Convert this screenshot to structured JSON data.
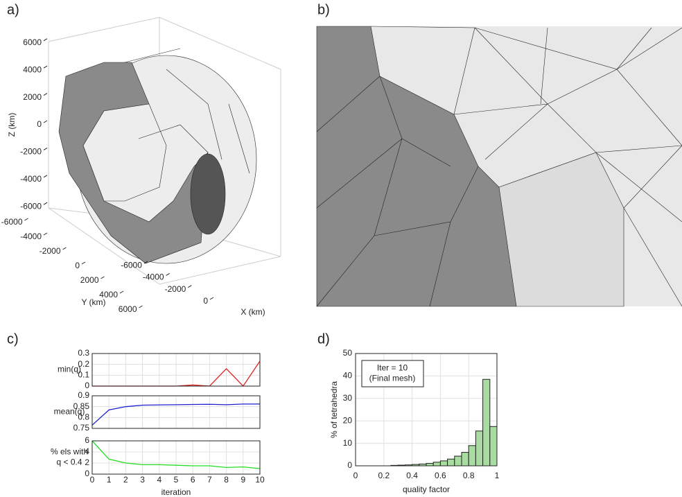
{
  "chart_data": [
    {
      "type": "mesh3d",
      "panel": "a)",
      "xlabel": "X (km)",
      "ylabel": "Y (km)",
      "zlabel": "Z (km)",
      "xticks": [
        -6000,
        -4000,
        -2000,
        0
      ],
      "yticks": [
        -6000,
        -4000,
        -2000,
        0,
        2000,
        4000,
        6000
      ],
      "zticks": [
        -6000,
        -4000,
        -2000,
        0,
        2000,
        4000,
        6000
      ]
    },
    {
      "type": "mesh2d",
      "panel": "b)"
    },
    {
      "type": "line",
      "panel": "c)",
      "ylabel": [
        "min(q)"
      ],
      "color": "#e02020",
      "x": [
        0,
        1,
        2,
        3,
        4,
        5,
        6,
        7,
        8,
        9,
        10
      ],
      "values": [
        0,
        0,
        0,
        0,
        0,
        0,
        0.01,
        0,
        0.16,
        0,
        0.23
      ],
      "xlim": [
        0,
        10
      ],
      "ylim": [
        0,
        0.3
      ],
      "yticks": [
        0,
        0.1,
        0.2,
        0.3
      ],
      "grid": true
    },
    {
      "type": "line",
      "ylabel": [
        "mean(q)"
      ],
      "color": "#1f1fd0",
      "x": [
        0,
        1,
        2,
        3,
        4,
        5,
        6,
        7,
        8,
        9,
        10
      ],
      "values": [
        0.765,
        0.835,
        0.85,
        0.857,
        0.858,
        0.859,
        0.86,
        0.861,
        0.859,
        0.862,
        0.862
      ],
      "xlim": [
        0,
        10
      ],
      "ylim": [
        0.75,
        0.9
      ],
      "yticks": [
        0.75,
        0.8,
        0.85,
        0.9
      ],
      "grid": true
    },
    {
      "type": "line",
      "ylabel": [
        "% els with",
        "q < 0.4"
      ],
      "color": "#22dd22",
      "x": [
        0,
        1,
        2,
        3,
        4,
        5,
        6,
        7,
        8,
        9,
        10
      ],
      "values": [
        6,
        2.7,
        2,
        1.7,
        1.7,
        1.6,
        1.5,
        1.5,
        1.2,
        1.3,
        1.0
      ],
      "xlim": [
        0,
        10
      ],
      "ylim": [
        0,
        6
      ],
      "yticks": [
        0,
        2,
        4,
        6
      ],
      "xticks": [
        0,
        1,
        2,
        3,
        4,
        5,
        6,
        7,
        8,
        9,
        10
      ],
      "xlabel": "iteration",
      "grid": true
    },
    {
      "type": "histogram",
      "panel": "d)",
      "xlabel": "quality factor",
      "ylabel": "% of tetrahedra",
      "annotation": [
        "Iter = 10",
        "(Final mesh)"
      ],
      "color": "#a8dca0",
      "bins": [
        0,
        0.05,
        0.1,
        0.15,
        0.2,
        0.25,
        0.3,
        0.35,
        0.4,
        0.45,
        0.5,
        0.55,
        0.6,
        0.65,
        0.7,
        0.75,
        0.8,
        0.85,
        0.9,
        0.95,
        1
      ],
      "values": [
        0,
        0,
        0,
        0,
        0,
        0.2,
        0.3,
        0.4,
        0.6,
        0.8,
        1.1,
        1.6,
        2.2,
        3.0,
        4.3,
        6,
        9,
        15.5,
        38.5,
        17.5
      ],
      "xlim": [
        0,
        1
      ],
      "xticks": [
        0,
        0.2,
        0.4,
        0.6,
        0.8,
        1
      ],
      "ylim": [
        0,
        50
      ],
      "yticks": [
        0,
        10,
        20,
        30,
        40,
        50
      ],
      "grid": true
    }
  ]
}
